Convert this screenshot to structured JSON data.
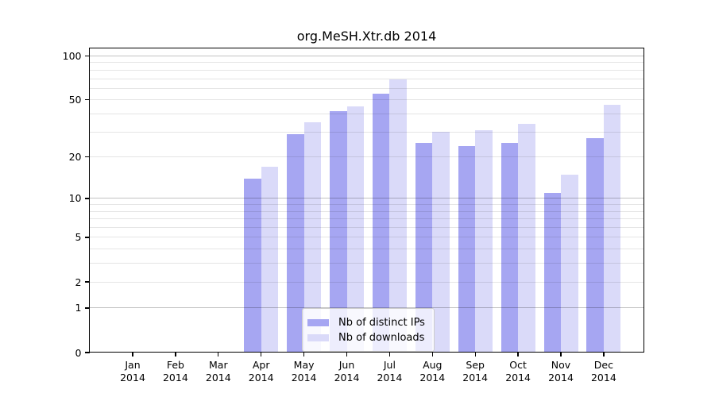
{
  "chart_data": {
    "type": "bar",
    "title": "org.MeSH.Xtr.db 2014",
    "categories": [
      "Jan",
      "Feb",
      "Mar",
      "Apr",
      "May",
      "Jun",
      "Jul",
      "Aug",
      "Sep",
      "Oct",
      "Nov",
      "Dec"
    ],
    "year_label": "2014",
    "series": [
      {
        "name": "Nb of distinct IPs",
        "color": "#a6a6f2",
        "values": [
          0,
          0,
          0,
          14,
          29,
          42,
          55,
          25,
          24,
          25,
          11,
          27
        ]
      },
      {
        "name": "Nb of downloads",
        "color": "#dadaf9",
        "values": [
          0,
          0,
          0,
          17,
          35,
          45,
          69,
          30,
          31,
          34,
          15,
          46
        ]
      }
    ],
    "yscale": "log1p",
    "ylim": [
      0,
      114
    ],
    "yticks": [
      0,
      1,
      2,
      5,
      10,
      20,
      50,
      100
    ],
    "yticks_minor": [
      3,
      4,
      6,
      7,
      8,
      9,
      30,
      40,
      60,
      70,
      80,
      90
    ],
    "grid": "on",
    "legend_position": "lower center"
  },
  "colors": {
    "major_gridline": "#c2c2c2",
    "minor_gridline": "#e5e5e5",
    "spine": "#000000",
    "background": "#ffffff"
  }
}
